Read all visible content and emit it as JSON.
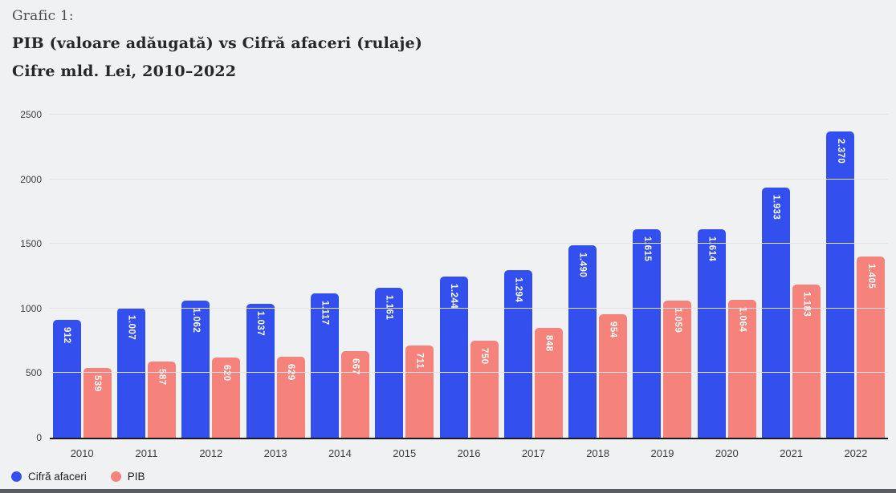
{
  "header": {
    "kicker": "Grafic 1:",
    "title_line1": "PIB (valoare adăugată) vs Cifră afaceri (rulaje)",
    "title_line2": "Cifre mld. Lei, 2010–2022"
  },
  "colors": {
    "turnover_blue": "#3350ef",
    "gdp_salmon": "#f5837b",
    "background": "#eff1f3",
    "axis_line": "#1a1c1e",
    "gridline": "#e2e4e7"
  },
  "legend": [
    {
      "label": "Cifră afaceri",
      "color": "#3350ef"
    },
    {
      "label": "PIB",
      "color": "#f5837b"
    }
  ],
  "chart_data": {
    "type": "bar",
    "title": "PIB (valoare adăugată) vs Cifră afaceri (rulaje)",
    "subtitle": "Cifre mld. Lei, 2010–2022",
    "categories": [
      "2010",
      "2011",
      "2012",
      "2013",
      "2014",
      "2015",
      "2016",
      "2017",
      "2018",
      "2019",
      "2020",
      "2021",
      "2022"
    ],
    "series": [
      {
        "name": "Cifră afaceri",
        "color": "#3350ef",
        "values": [
          912,
          1007,
          1062,
          1037,
          1117,
          1161,
          1244,
          1294,
          1490,
          1615,
          1614,
          1933,
          2370
        ],
        "labels": [
          "912",
          "1.007",
          "1.062",
          "1.037",
          "1.117",
          "1.161",
          "1.244",
          "1.294",
          "1.490",
          "1.615",
          "1.614",
          "1.933",
          "2.370"
        ]
      },
      {
        "name": "PIB",
        "color": "#f5837b",
        "values": [
          539,
          587,
          620,
          629,
          667,
          711,
          750,
          848,
          954,
          1059,
          1064,
          1183,
          1405
        ],
        "labels": [
          "539",
          "587",
          "620",
          "629",
          "667",
          "711",
          "750",
          "848",
          "954",
          "1.059",
          "1.064",
          "1.183",
          "1.405"
        ]
      }
    ],
    "ylabel": "",
    "xlabel": "",
    "ylim": [
      0,
      2500
    ],
    "yticks": [
      0,
      500,
      1000,
      1500,
      2000,
      2500
    ],
    "grid": true,
    "legend_position": "bottom-left",
    "value_labels": "inside-top, rotated vertical, white bold"
  }
}
